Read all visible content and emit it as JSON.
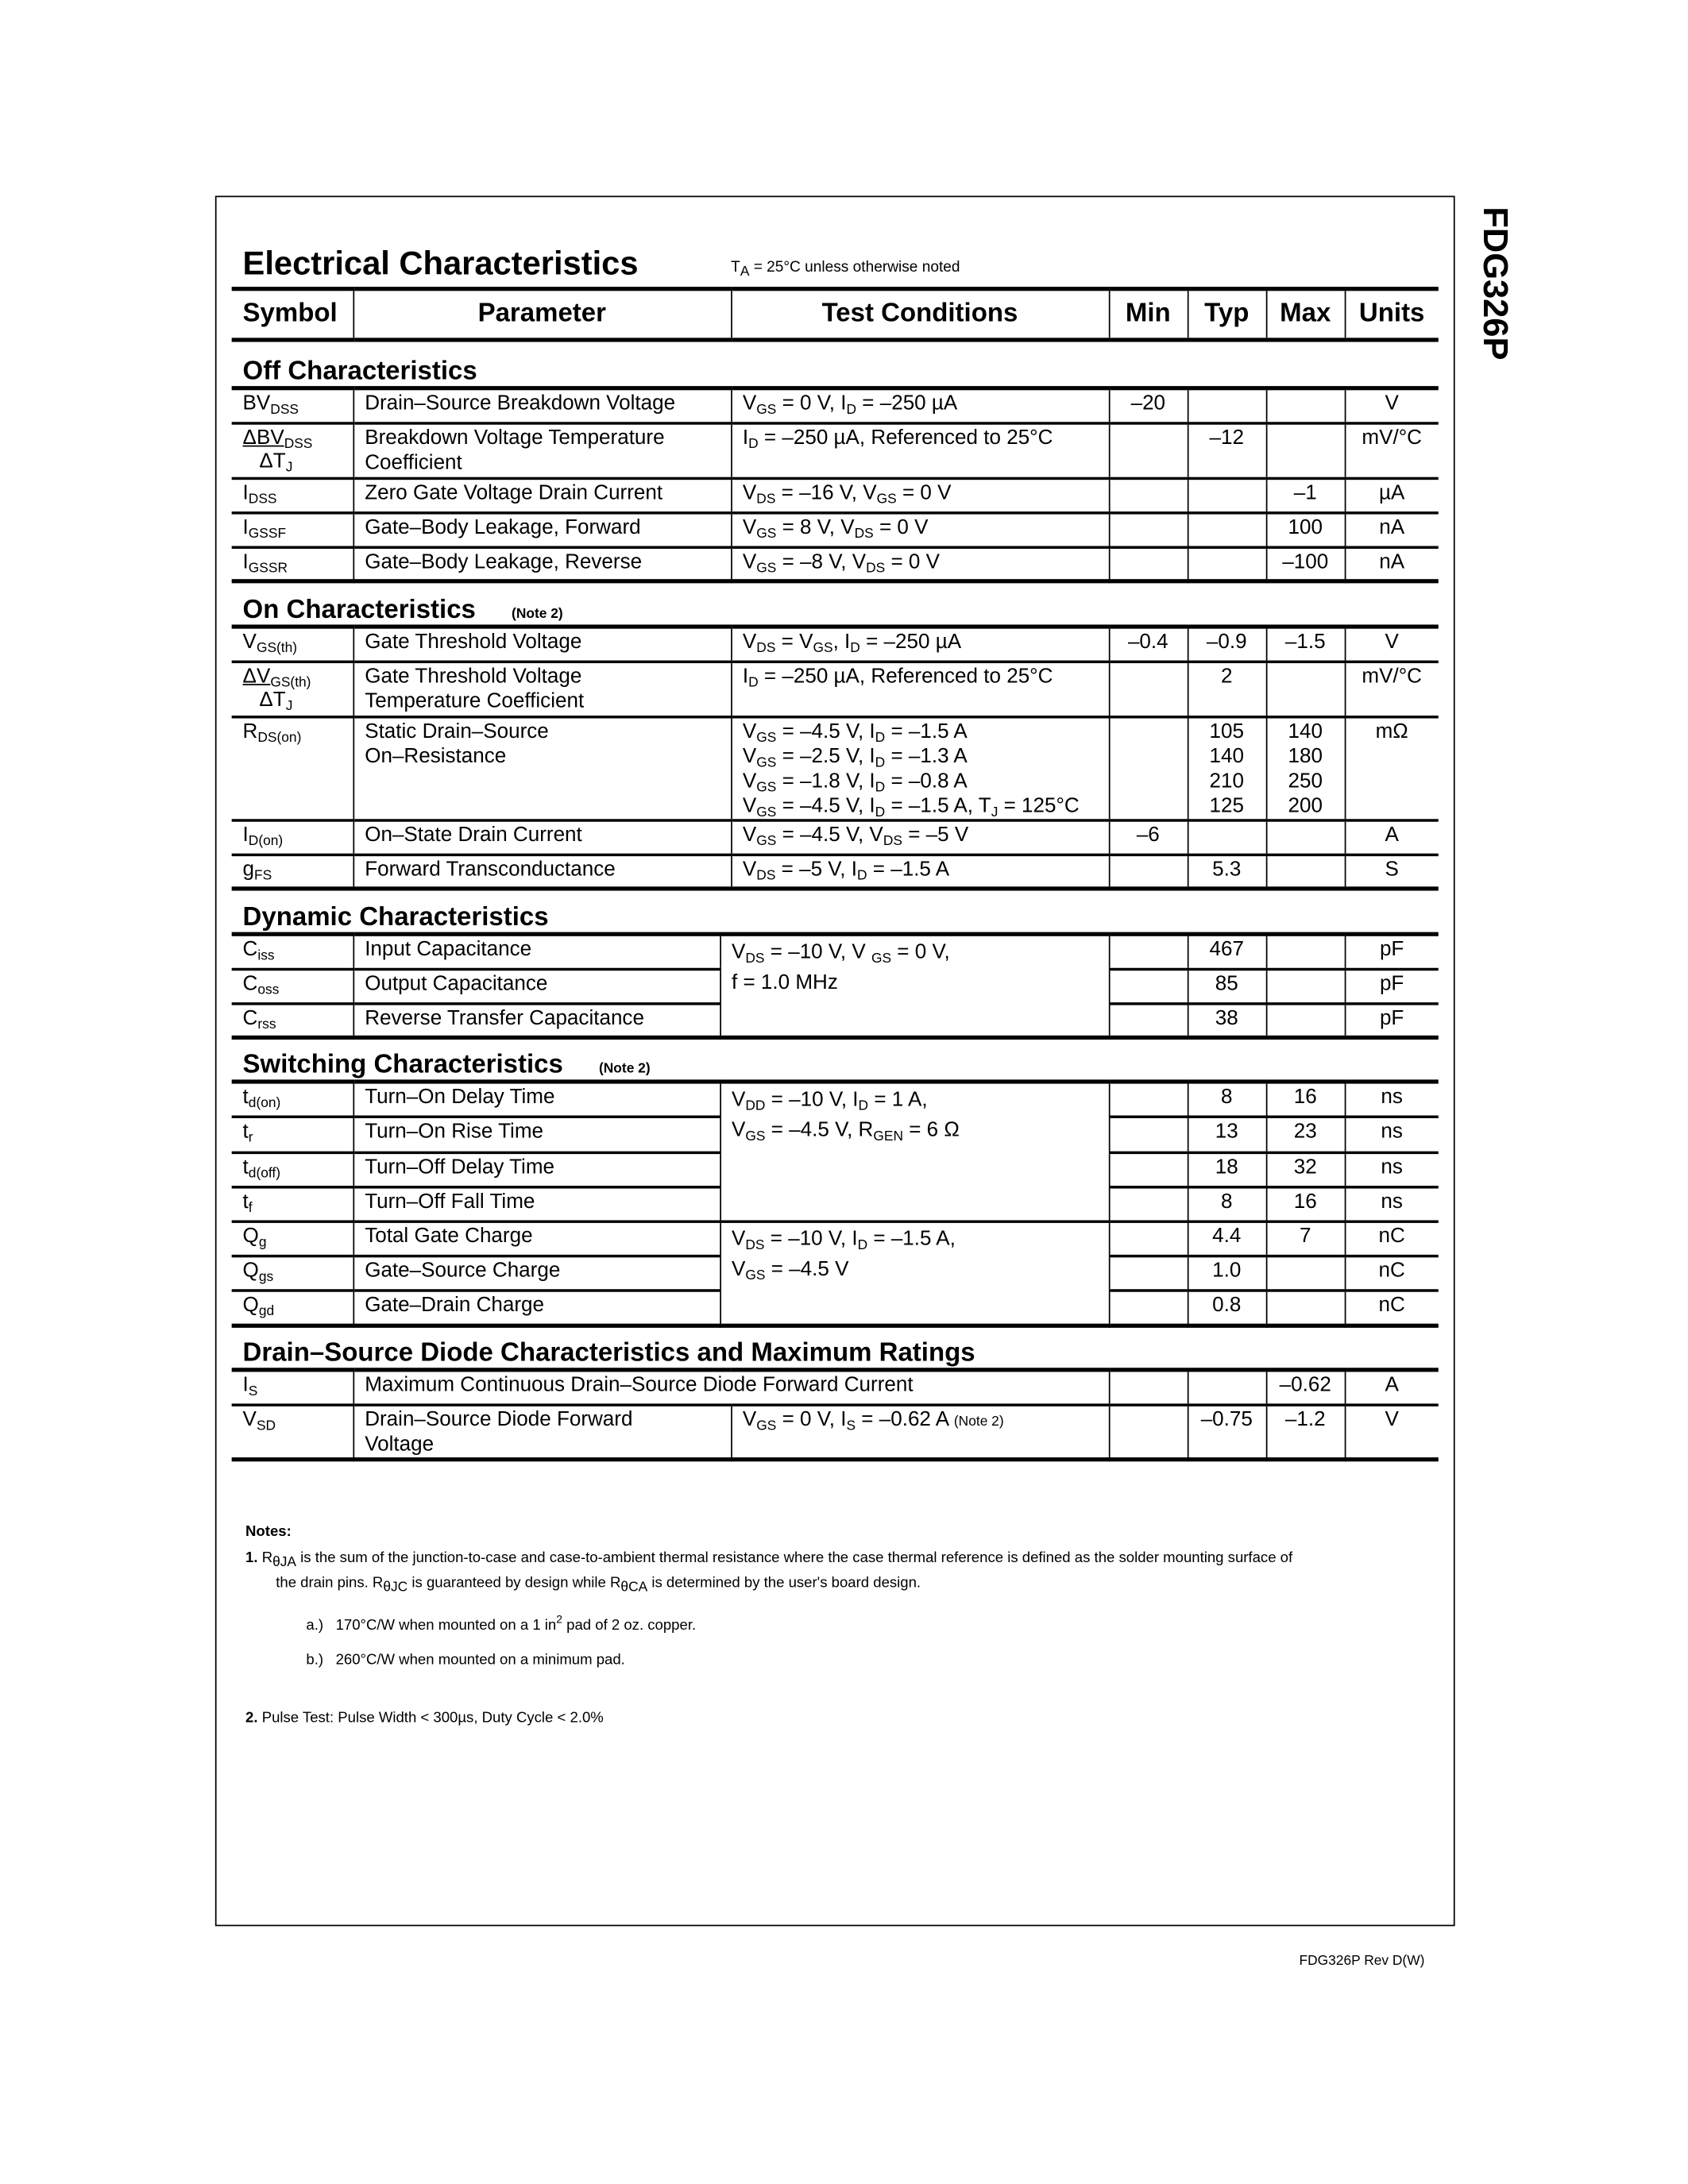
{
  "side_title": "FDG326P",
  "title": "Electrical Characteristics",
  "title_condition": "T_{A} = 25°C unless otherwise noted",
  "header": [
    "Symbol",
    "Parameter",
    "Test Conditions",
    "Min",
    "Typ",
    "Max",
    "Units"
  ],
  "sections": [
    {
      "heading": "Off Characteristics",
      "note": "",
      "groups": [
        {
          "conditions": [
            "V_{GS} = 0 V, I_{D} = –250 µA"
          ],
          "rows": [
            {
              "symbol": "BV_{DSS}",
              "parameter": [
                "Drain–Source Breakdown Voltage"
              ],
              "min": "–20",
              "typ": "",
              "max": "",
              "units": "V"
            }
          ]
        },
        {
          "conditions": [
            "I_{D} = –250 µA, Referenced to 25°C"
          ],
          "rows": [
            {
              "symbol": {
                "num": "ΔBV_{DSS}",
                "den": "ΔT_{J}"
              },
              "parameter": [
                "Breakdown Voltage Temperature",
                "Coefficient"
              ],
              "min": "",
              "typ": "–12",
              "max": "",
              "units": "mV/°C"
            }
          ]
        },
        {
          "conditions": [
            "V_{DS} = –16 V, V_{GS} = 0 V"
          ],
          "rows": [
            {
              "symbol": "I_{DSS}",
              "parameter": [
                "Zero Gate Voltage Drain Current"
              ],
              "min": "",
              "typ": "",
              "max": "–1",
              "units": "µA"
            }
          ]
        },
        {
          "conditions": [
            "V_{GS} = 8 V, V_{DS} = 0 V"
          ],
          "rows": [
            {
              "symbol": "I_{GSSF}",
              "parameter": [
                "Gate–Body Leakage, Forward"
              ],
              "min": "",
              "typ": "",
              "max": "100",
              "units": "nA"
            }
          ]
        },
        {
          "conditions": [
            "V_{GS} = –8 V, V_{DS} = 0 V"
          ],
          "rows": [
            {
              "symbol": "I_{GSSR}",
              "parameter": [
                "Gate–Body Leakage, Reverse"
              ],
              "min": "",
              "typ": "",
              "max": "–100",
              "units": "nA"
            }
          ]
        }
      ]
    },
    {
      "heading": "On Characteristics",
      "note": "(Note 2)",
      "groups": [
        {
          "conditions": [
            "V_{DS} = V_{GS}, I_{D} = –250 µA"
          ],
          "rows": [
            {
              "symbol": "V_{GS(th)}",
              "parameter": [
                "Gate Threshold Voltage"
              ],
              "min": "–0.4",
              "typ": "–0.9",
              "max": "–1.5",
              "units": "V"
            }
          ]
        },
        {
          "conditions": [
            "I_{D} = –250 µA, Referenced to 25°C"
          ],
          "rows": [
            {
              "symbol": {
                "num": "ΔV_{GS(th)}",
                "den": "ΔT_{J}"
              },
              "parameter": [
                "Gate Threshold Voltage",
                "Temperature Coefficient"
              ],
              "min": "",
              "typ": "2",
              "max": "",
              "units": "mV/°C"
            }
          ]
        },
        {
          "conditions": [
            "V_{GS} = –4.5 V, I_{D} = –1.5 A",
            "V_{GS} = –2.5 V, I_{D} = –1.3 A",
            "V_{GS} = –1.8 V, I_{D} = –0.8 A",
            "V_{GS} = –4.5 V, I_{D} = –1.5 A, T_{J} = 125°C"
          ],
          "rows": [
            {
              "symbol": "R_{DS(on)}",
              "parameter": [
                "Static Drain–Source",
                "On–Resistance"
              ],
              "min": "",
              "typ": [
                "105",
                "140",
                "210",
                "125"
              ],
              "max": [
                "140",
                "180",
                "250",
                "200"
              ],
              "units": "mΩ"
            }
          ]
        },
        {
          "conditions": [
            "V_{GS} = –4.5 V, V_{DS} = –5 V"
          ],
          "rows": [
            {
              "symbol": "I_{D(on)}",
              "parameter": [
                "On–State Drain Current"
              ],
              "min": "–6",
              "typ": "",
              "max": "",
              "units": "A"
            }
          ]
        },
        {
          "conditions": [
            "V_{DS} = –5 V, I_{D} = –1.5 A"
          ],
          "rows": [
            {
              "symbol": "g_{FS}",
              "parameter": [
                "Forward Transconductance"
              ],
              "min": "",
              "typ": "5.3",
              "max": "",
              "units": "S"
            }
          ]
        }
      ]
    },
    {
      "heading": "Dynamic Characteristics",
      "note": "",
      "groups": [
        {
          "conditions": [
            "V_{DS} = –10 V, V _{GS} = 0 V,",
            "f = 1.0 MHz"
          ],
          "rows": [
            {
              "symbol": "C_{iss}",
              "parameter": [
                "Input Capacitance"
              ],
              "min": "",
              "typ": "467",
              "max": "",
              "units": "pF"
            },
            {
              "symbol": "C_{oss}",
              "parameter": [
                "Output Capacitance"
              ],
              "min": "",
              "typ": "85",
              "max": "",
              "units": "pF"
            },
            {
              "symbol": "C_{rss}",
              "parameter": [
                "Reverse Transfer Capacitance"
              ],
              "min": "",
              "typ": "38",
              "max": "",
              "units": "pF"
            }
          ]
        }
      ]
    },
    {
      "heading": "Switching Characteristics",
      "note": "(Note 2)",
      "groups": [
        {
          "conditions": [
            "V_{DD} = –10 V,  I_{D} = 1 A,",
            "V_{GS} = –4.5 V, R_{GEN} = 6 Ω"
          ],
          "rows": [
            {
              "symbol": "t_{d(on)}",
              "parameter": [
                "Turn–On Delay Time"
              ],
              "min": "",
              "typ": "8",
              "max": "16",
              "units": "ns"
            },
            {
              "symbol": "t_{r}",
              "parameter": [
                "Turn–On Rise Time"
              ],
              "min": "",
              "typ": "13",
              "max": "23",
              "units": "ns"
            },
            {
              "symbol": "t_{d(off)}",
              "parameter": [
                "Turn–Off Delay Time"
              ],
              "min": "",
              "typ": "18",
              "max": "32",
              "units": "ns"
            },
            {
              "symbol": "t_{f}",
              "parameter": [
                "Turn–Off Fall Time"
              ],
              "min": "",
              "typ": "8",
              "max": "16",
              "units": "ns"
            }
          ]
        },
        {
          "conditions": [
            "V_{DS} = –10 V, I_{D} = –1.5 A,",
            "V_{GS} = –4.5 V"
          ],
          "rows": [
            {
              "symbol": "Q_{g}",
              "parameter": [
                "Total Gate Charge"
              ],
              "min": "",
              "typ": "4.4",
              "max": "7",
              "units": "nC"
            },
            {
              "symbol": "Q_{gs}",
              "parameter": [
                "Gate–Source Charge"
              ],
              "min": "",
              "typ": "1.0",
              "max": "",
              "units": "nC"
            },
            {
              "symbol": "Q_{gd}",
              "parameter": [
                "Gate–Drain Charge"
              ],
              "min": "",
              "typ": "0.8",
              "max": "",
              "units": "nC"
            }
          ]
        }
      ]
    },
    {
      "heading": "Drain–Source Diode Characteristics and Maximum Ratings",
      "note": "",
      "groups": [
        {
          "conditions": null,
          "rows": [
            {
              "symbol": "I_{S}",
              "parameter": [
                "Maximum Continuous Drain–Source Diode Forward Current"
              ],
              "min": "",
              "typ": "",
              "max": "–0.62",
              "units": "A"
            }
          ]
        },
        {
          "conditions": [
            "V_{GS} = 0 V,    I_{S} = –0.62 A  ~{(Note 2)}"
          ],
          "rows": [
            {
              "symbol": "V_{SD}",
              "parameter": [
                "Drain–Source Diode Forward",
                "Voltage"
              ],
              "min": "",
              "typ": "–0.75",
              "max": "–1.2",
              "units": "V"
            }
          ]
        }
      ]
    }
  ],
  "notes": {
    "title": "Notes:",
    "note1_num": "1.",
    "note1_line1": "R_{θJA} is the sum of the junction-to-case and case-to-ambient thermal resistance where the case thermal reference is defined as the solder mounting surface of",
    "note1_line2": "the drain pins.  R_{θJC} is guaranteed by design while R_{θCA} is determined by the user's board design.",
    "a_label": "a.)",
    "a_text": "170°C/W when mounted on a 1 in^{2} pad of 2 oz. copper.",
    "b_label": "b.)",
    "b_text": "260°C/W when mounted on a minimum pad.",
    "note2_num": "2.",
    "note2_text": "Pulse Test: Pulse Width < 300µs, Duty Cycle < 2.0%"
  },
  "footer": "FDG326P Rev D(W)"
}
